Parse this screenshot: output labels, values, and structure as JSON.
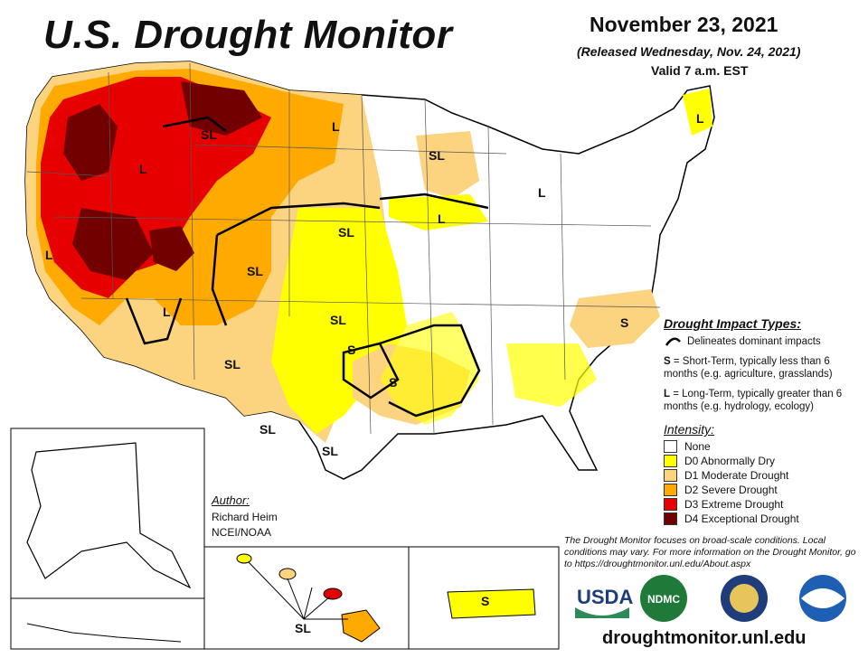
{
  "header": {
    "title": "U.S. Drought Monitor",
    "date": "November 23, 2021",
    "released": "(Released Wednesday, Nov. 24, 2021)",
    "valid": "Valid 7 a.m. EST"
  },
  "impact_legend": {
    "heading": "Drought Impact Types:",
    "line_desc": "Delineates dominant impacts",
    "short_term_code": "S",
    "short_term_desc": "= Short-Term, typically less than 6 months (e.g. agriculture, grasslands)",
    "long_term_code": "L",
    "long_term_desc": "= Long-Term, typically greater than 6 months (e.g. hydrology, ecology)"
  },
  "intensity_legend": {
    "heading": "Intensity:",
    "items": [
      {
        "label": "None",
        "color": "#ffffff"
      },
      {
        "label": "D0 Abnormally Dry",
        "color": "#ffff00"
      },
      {
        "label": "D1 Moderate Drought",
        "color": "#fcd37f"
      },
      {
        "label": "D2 Severe Drought",
        "color": "#ffaa00"
      },
      {
        "label": "D3 Extreme Drought",
        "color": "#e60000"
      },
      {
        "label": "D4 Exceptional Drought",
        "color": "#730000"
      }
    ]
  },
  "author": {
    "heading": "Author:",
    "name": "Richard Heim",
    "org": "NCEI/NOAA"
  },
  "note": "The Drought Monitor focuses on broad-scale conditions. Local conditions may vary. For more information on the Drought Monitor, go to https://droughtmonitor.unl.edu/About.aspx",
  "url": "droughtmonitor.unl.edu",
  "map_labels": {
    "sl": "SL",
    "s": "S",
    "l": "L"
  },
  "logos": {
    "usda": "USDA",
    "ndmc": "NDMC",
    "noaa": "NOAA"
  }
}
